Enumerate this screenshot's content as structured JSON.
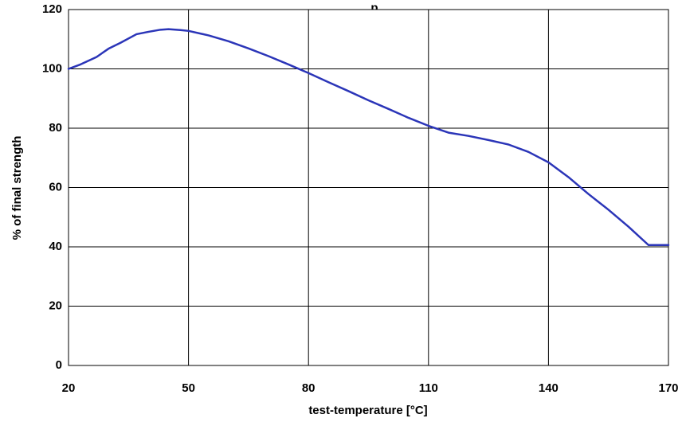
{
  "chart_data": {
    "type": "line",
    "title": "",
    "title_fragment": "p",
    "xlabel": "test-temperature [°C]",
    "ylabel": "% of final strength",
    "xlim": [
      20,
      170
    ],
    "ylim": [
      0,
      120
    ],
    "x_ticks": [
      20,
      50,
      80,
      110,
      140,
      170
    ],
    "y_ticks": [
      0,
      20,
      40,
      60,
      80,
      100,
      120
    ],
    "grid": true,
    "line_color": "#2b35b8",
    "series": [
      {
        "x": [
          20,
          23,
          27,
          30,
          33,
          37,
          40,
          43,
          45,
          48,
          50,
          55,
          60,
          65,
          70,
          75,
          80,
          85,
          90,
          95,
          100,
          105,
          110,
          115,
          120,
          125,
          130,
          135,
          140,
          145,
          150,
          155,
          160,
          165,
          170
        ],
        "values": [
          100,
          101.5,
          104,
          106.8,
          108.8,
          111.7,
          112.5,
          113.2,
          113.4,
          113.1,
          112.8,
          111.3,
          109.3,
          106.9,
          104.3,
          101.5,
          98.6,
          95.5,
          92.5,
          89.4,
          86.5,
          83.5,
          80.8,
          78.5,
          77.4,
          76,
          74.5,
          72,
          68.5,
          63.5,
          57.8,
          52.5,
          46.8,
          40.6,
          40.6
        ]
      }
    ]
  }
}
